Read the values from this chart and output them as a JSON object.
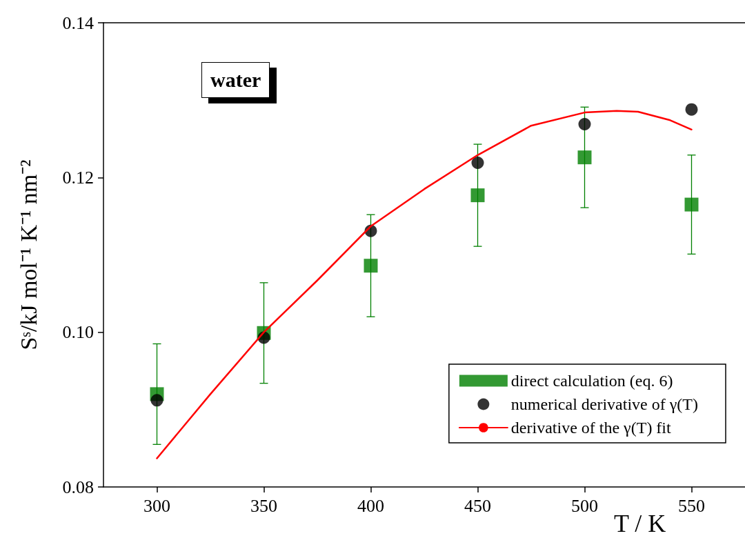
{
  "chart_data": {
    "type": "scatter",
    "xlabel": "T / K",
    "ylabel": "Sˢ/kJ mol⁻¹ K⁻¹ nm⁻²",
    "annotations": [
      "water"
    ],
    "xlim": [
      275,
      575
    ],
    "xticks": [
      300,
      350,
      400,
      450,
      500,
      550
    ],
    "ylim": [
      0.08,
      0.14
    ],
    "yticks": [
      {
        "value": 0.08,
        "label": "0.08"
      },
      {
        "value": 0.1,
        "label": "0.10"
      },
      {
        "value": 0.12,
        "label": "0.12"
      },
      {
        "value": 0.14,
        "label": "0.14"
      }
    ],
    "grid": false,
    "legend": "bottom right",
    "series": [
      {
        "name": "direct calculation (eq. 6)",
        "marker": "square",
        "color": "#008000",
        "x": [
          300,
          350,
          400,
          450,
          500,
          550
        ],
        "values": [
          0.092,
          0.0999,
          0.1086,
          0.1177,
          0.1226,
          0.1165
        ],
        "errors": [
          0.0065,
          0.0065,
          0.0066,
          0.0066,
          0.0065,
          0.0064
        ]
      },
      {
        "name": "numerical derivative of γ(T)",
        "marker": "circle",
        "color": "#000000",
        "x": [
          300,
          350,
          400,
          450,
          500,
          550
        ],
        "values": [
          0.0912,
          0.0993,
          0.1131,
          0.1219,
          0.1269,
          0.1288
        ]
      },
      {
        "name": "derivative of the γ(T) fit",
        "type": "line",
        "marker": "none",
        "line_style": "solid",
        "color": "#ff0000",
        "x": [
          300,
          325,
          350,
          375,
          400,
          425,
          450,
          475,
          500,
          515,
          525,
          540,
          550
        ],
        "values": [
          0.0837,
          0.092,
          0.1,
          0.1067,
          0.1137,
          0.1185,
          0.1229,
          0.1267,
          0.1284,
          0.1286,
          0.1285,
          0.1274,
          0.1262
        ]
      }
    ]
  }
}
